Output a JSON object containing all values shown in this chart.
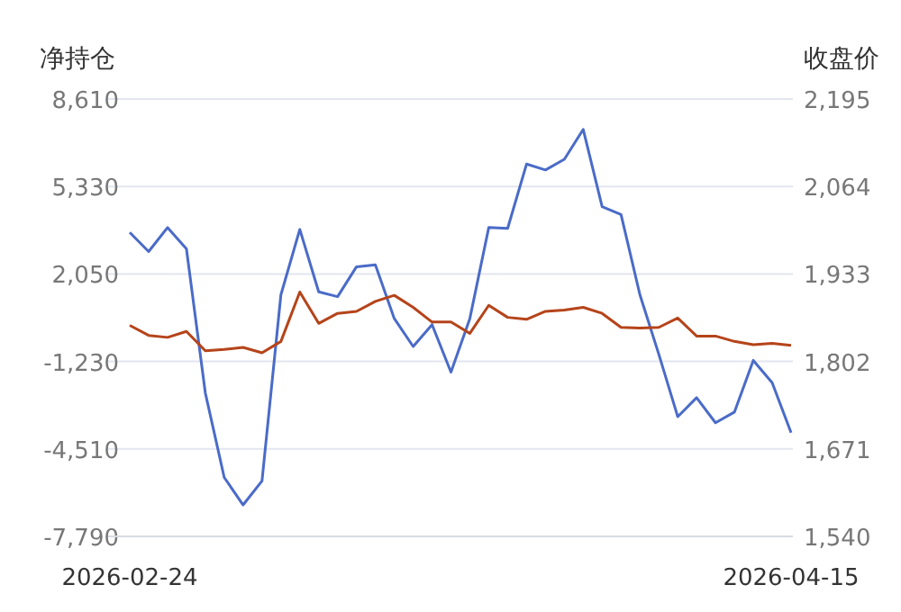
{
  "chart_data": {
    "type": "line",
    "ylabel": "净持仓",
    "y2label": "收盘价",
    "categories": [
      "2026-02-24",
      null,
      null,
      null,
      null,
      null,
      null,
      null,
      null,
      null,
      null,
      null,
      null,
      null,
      null,
      null,
      null,
      null,
      null,
      null,
      null,
      null,
      null,
      null,
      null,
      null,
      null,
      null,
      null,
      null,
      null,
      null,
      null,
      null,
      null,
      "2026-04-15"
    ],
    "series": [
      {
        "color": "#4a6bc8",
        "values": [
          3610,
          2890,
          3790,
          2990,
          -2410,
          -5580,
          -6610,
          -5710,
          1270,
          3720,
          1380,
          1200,
          2320,
          2390,
          380,
          -670,
          150,
          -1630,
          380,
          3790,
          3760,
          6170,
          5950,
          6350,
          7470,
          4570,
          4280,
          1270,
          -960,
          -3300,
          -2590,
          -3530,
          -3130,
          -1190,
          -2030,
          -3900
        ]
      },
      {
        "color": "#b5441a",
        "axis": "y2",
        "values": [
          1856,
          1841,
          1838,
          1847,
          1818,
          1820,
          1823,
          1815,
          1832,
          1906,
          1859,
          1874,
          1877,
          1892,
          1901,
          1883,
          1861,
          1861,
          1844,
          1886,
          1868,
          1865,
          1877,
          1879,
          1883,
          1874,
          1853,
          1852,
          1853,
          1867,
          1840,
          1840,
          1832,
          1827,
          1829,
          1826
        ]
      }
    ],
    "ylim": [
      -7790,
      8610
    ],
    "yticks": [
      {
        "value": 8610,
        "label": "8,610"
      },
      {
        "value": 5330,
        "label": "5,330"
      },
      {
        "value": 2050,
        "label": "2,050"
      },
      {
        "value": -1230,
        "label": "-1,230"
      },
      {
        "value": -4510,
        "label": "-4,510"
      },
      {
        "value": -7790,
        "label": "-7,790"
      }
    ],
    "y2lim": [
      1540,
      2195
    ],
    "y2ticks": [
      {
        "value": 2195,
        "label": "2,195"
      },
      {
        "value": 2064,
        "label": "2,064"
      },
      {
        "value": 1933,
        "label": "1,933"
      },
      {
        "value": 1802,
        "label": "1,802"
      },
      {
        "value": 1671,
        "label": "1,671"
      },
      {
        "value": 1540,
        "label": "1,540"
      }
    ],
    "grid": "y",
    "marker": "none",
    "line_style": "solid"
  }
}
